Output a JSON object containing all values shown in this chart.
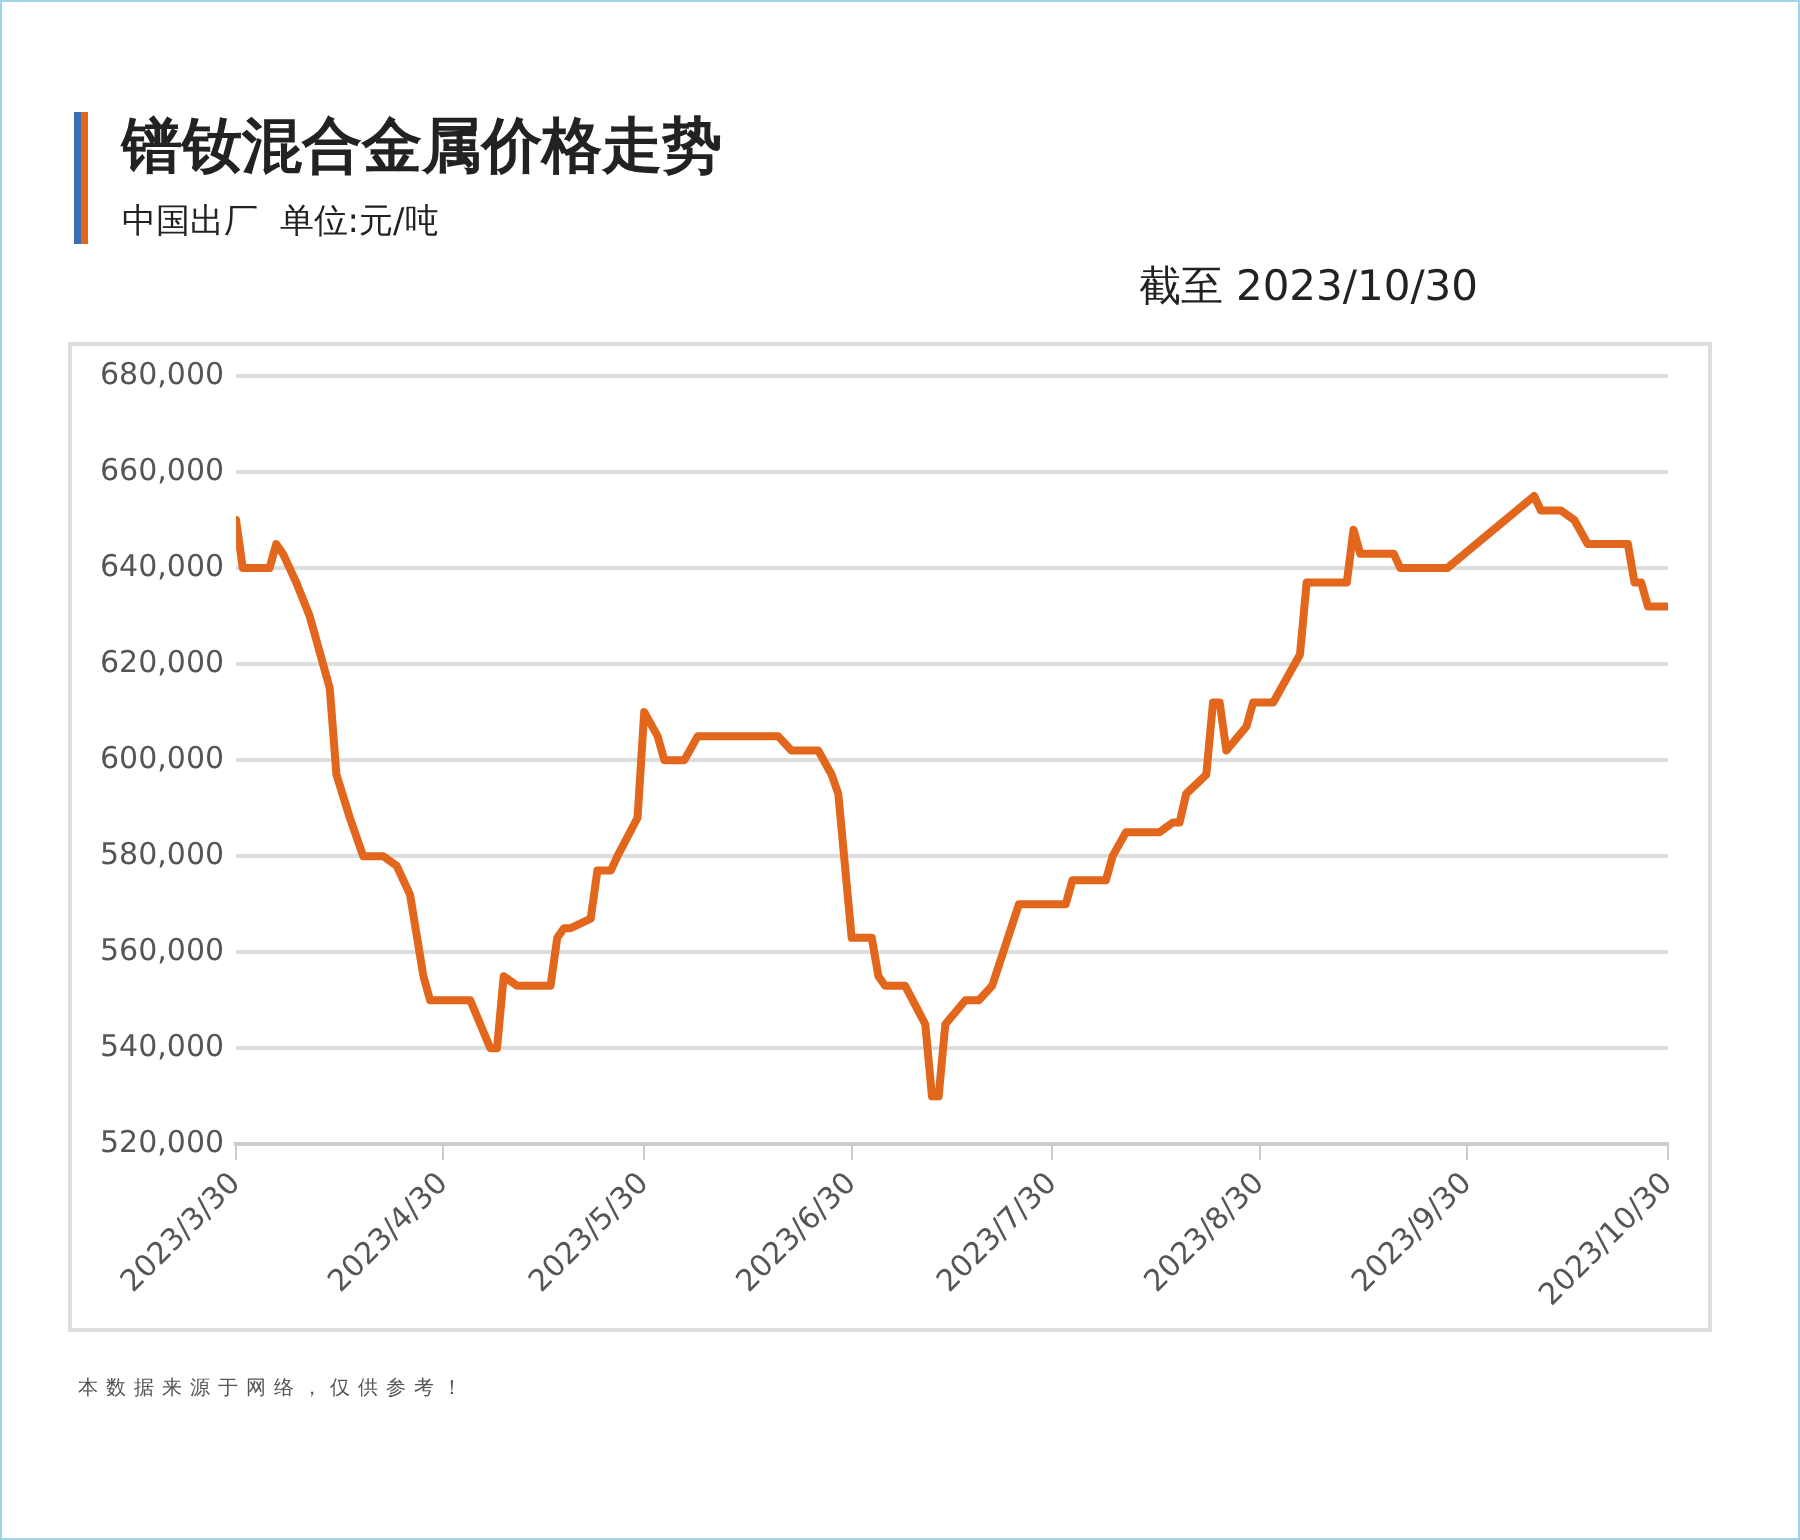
{
  "chart_data": {
    "type": "line",
    "title": "镨钕混合金属价格走势",
    "subtitle": "中国出厂  单位:元/吨",
    "annotations": [
      "截至 2023/10/30",
      "本数据来源于网络，仅供参考！"
    ],
    "x": [
      "2023-03-30",
      "2023-03-31",
      "2023-04-04",
      "2023-04-05",
      "2023-04-06",
      "2023-04-08",
      "2023-04-10",
      "2023-04-13",
      "2023-04-14",
      "2023-04-16",
      "2023-04-18",
      "2023-04-21",
      "2023-04-23",
      "2023-04-25",
      "2023-04-27",
      "2023-04-28",
      "2023-05-04",
      "2023-05-07",
      "2023-05-08",
      "2023-05-09",
      "2023-05-11",
      "2023-05-16",
      "2023-05-17",
      "2023-05-18",
      "2023-05-19",
      "2023-05-22",
      "2023-05-23",
      "2023-05-25",
      "2023-05-26",
      "2023-05-29",
      "2023-05-30",
      "2023-06-01",
      "2023-06-02",
      "2023-06-05",
      "2023-06-07",
      "2023-06-19",
      "2023-06-21",
      "2023-06-25",
      "2023-06-27",
      "2023-06-28",
      "2023-06-30",
      "2023-07-03",
      "2023-07-04",
      "2023-07-05",
      "2023-07-08",
      "2023-07-11",
      "2023-07-12",
      "2023-07-13",
      "2023-07-14",
      "2023-07-17",
      "2023-07-19",
      "2023-07-21",
      "2023-07-25",
      "2023-08-01",
      "2023-08-02",
      "2023-08-07",
      "2023-08-08",
      "2023-08-10",
      "2023-08-15",
      "2023-08-17",
      "2023-08-18",
      "2023-08-19",
      "2023-08-22",
      "2023-08-23",
      "2023-08-24",
      "2023-08-25",
      "2023-08-28",
      "2023-08-29",
      "2023-09-01",
      "2023-09-05",
      "2023-09-06",
      "2023-09-12",
      "2023-09-13",
      "2023-09-14",
      "2023-09-19",
      "2023-09-20",
      "2023-09-27",
      "2023-10-10",
      "2023-10-11",
      "2023-10-14",
      "2023-10-16",
      "2023-10-18",
      "2023-10-24",
      "2023-10-25",
      "2023-10-26",
      "2023-10-27",
      "2023-10-30"
    ],
    "series": [
      {
        "color": "#e2661b",
        "values": [
          650000,
          640000,
          640000,
          645000,
          643000,
          637000,
          630000,
          615000,
          597000,
          588000,
          580000,
          580000,
          578000,
          572000,
          555000,
          550000,
          550000,
          540000,
          540000,
          555000,
          553000,
          553000,
          563000,
          565000,
          565000,
          567000,
          577000,
          577000,
          580000,
          588000,
          610000,
          605000,
          600000,
          600000,
          605000,
          605000,
          602000,
          602000,
          597000,
          593000,
          563000,
          563000,
          555000,
          553000,
          553000,
          545000,
          530000,
          530000,
          545000,
          550000,
          550000,
          553000,
          570000,
          570000,
          575000,
          575000,
          580000,
          585000,
          585000,
          587000,
          587000,
          593000,
          597000,
          612000,
          612000,
          602000,
          607000,
          612000,
          612000,
          622000,
          637000,
          637000,
          648000,
          643000,
          643000,
          640000,
          640000,
          655000,
          652000,
          652000,
          650000,
          645000,
          645000,
          637000,
          637000,
          632000,
          632000
        ]
      }
    ],
    "xlim": [
      "2023-03-30",
      "2023-10-30"
    ],
    "xticks": [
      {
        "value": "2023-03-30",
        "label": "2023/3/30"
      },
      {
        "value": "2023-04-30",
        "label": "2023/4/30"
      },
      {
        "value": "2023-05-30",
        "label": "2023/5/30"
      },
      {
        "value": "2023-06-30",
        "label": "2023/6/30"
      },
      {
        "value": "2023-07-30",
        "label": "2023/7/30"
      },
      {
        "value": "2023-08-30",
        "label": "2023/8/30"
      },
      {
        "value": "2023-09-30",
        "label": "2023/9/30"
      },
      {
        "value": "2023-10-30",
        "label": "2023/10/30"
      }
    ],
    "ylim": [
      520000,
      680000
    ],
    "yticks": [
      {
        "value": 520000,
        "label": "520,000"
      },
      {
        "value": 540000,
        "label": "540,000"
      },
      {
        "value": 560000,
        "label": "560,000"
      },
      {
        "value": 580000,
        "label": "580,000"
      },
      {
        "value": 600000,
        "label": "600,000"
      },
      {
        "value": 620000,
        "label": "620,000"
      },
      {
        "value": 640000,
        "label": "640,000"
      },
      {
        "value": 660000,
        "label": "660,000"
      },
      {
        "value": 680000,
        "label": "680,000"
      }
    ],
    "grid": "y",
    "legend": false,
    "marker": "none",
    "line_style": "solid"
  }
}
